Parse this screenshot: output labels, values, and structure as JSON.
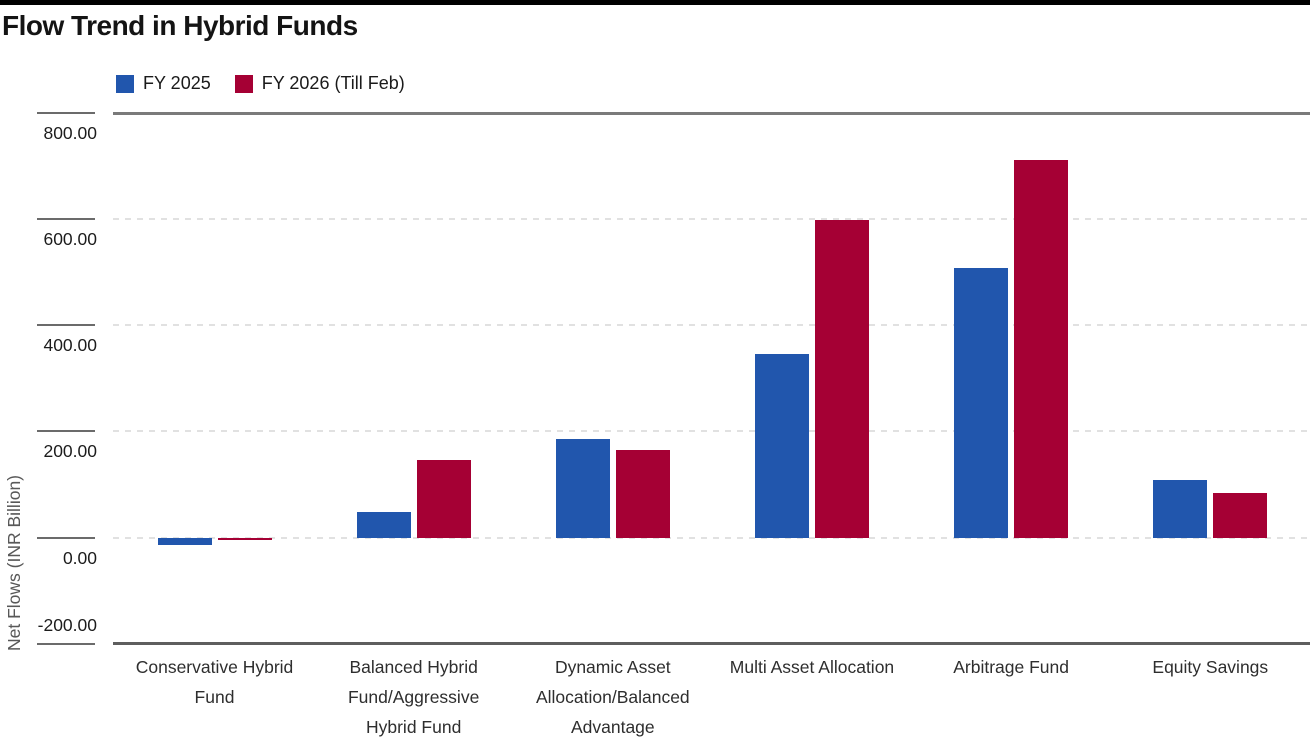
{
  "title": "Flow Trend in Hybrid Funds",
  "legend": [
    {
      "label": "FY 2025",
      "color": "#2156AD"
    },
    {
      "label": "FY 2026 (Till Feb)",
      "color": "#A50034"
    }
  ],
  "colors": {
    "series_blue": "#2156AD",
    "series_crimson": "#A50034",
    "top_accent_bar": "#000000",
    "axis_line_top": "#7a7a7a",
    "axis_line_bottom": "#5e5e5e",
    "grid_dashed": "#e1e1e1",
    "tick_mark": "#6b6b6b"
  },
  "chart_data": {
    "type": "bar",
    "title": "Flow Trend in Hybrid Funds",
    "xlabel": "",
    "ylabel": "Net Flows (INR Billion)",
    "ylim": [
      -200,
      800
    ],
    "yticks": [
      800,
      600,
      400,
      200,
      0,
      -200
    ],
    "ytick_labels": [
      "800.00",
      "600.00",
      "400.00",
      "200.00",
      "0.00",
      "-200.00"
    ],
    "grid": "horizontal dashed at 600/400/200/0, solid frame lines at 800 and -200",
    "legend_position": "top-left above plot",
    "categories": [
      "Conservative Hybrid Fund",
      "Balanced Hybrid Fund/Aggressive Hybrid Fund",
      "Dynamic Asset Allocation/Balanced Advantage",
      "Multi Asset Allocation",
      "Arbitrage Fund",
      "Equity Savings"
    ],
    "category_label_lines": [
      [
        "Conservative Hybrid",
        "Fund"
      ],
      [
        "Balanced Hybrid",
        "Fund/Aggressive",
        "Hybrid Fund"
      ],
      [
        "Dynamic Asset",
        "Allocation/Balanced",
        "Advantage"
      ],
      [
        "Multi Asset Allocation"
      ],
      [
        "Arbitrage Fund"
      ],
      [
        "Equity Savings"
      ]
    ],
    "series": [
      {
        "name": "FY 2025",
        "color": "#2156AD",
        "values": [
          -14,
          48,
          186,
          346,
          508,
          108
        ]
      },
      {
        "name": "FY 2026 (Till Feb)",
        "color": "#A50034",
        "values": [
          -4,
          146,
          166,
          598,
          711,
          84
        ]
      }
    ]
  }
}
